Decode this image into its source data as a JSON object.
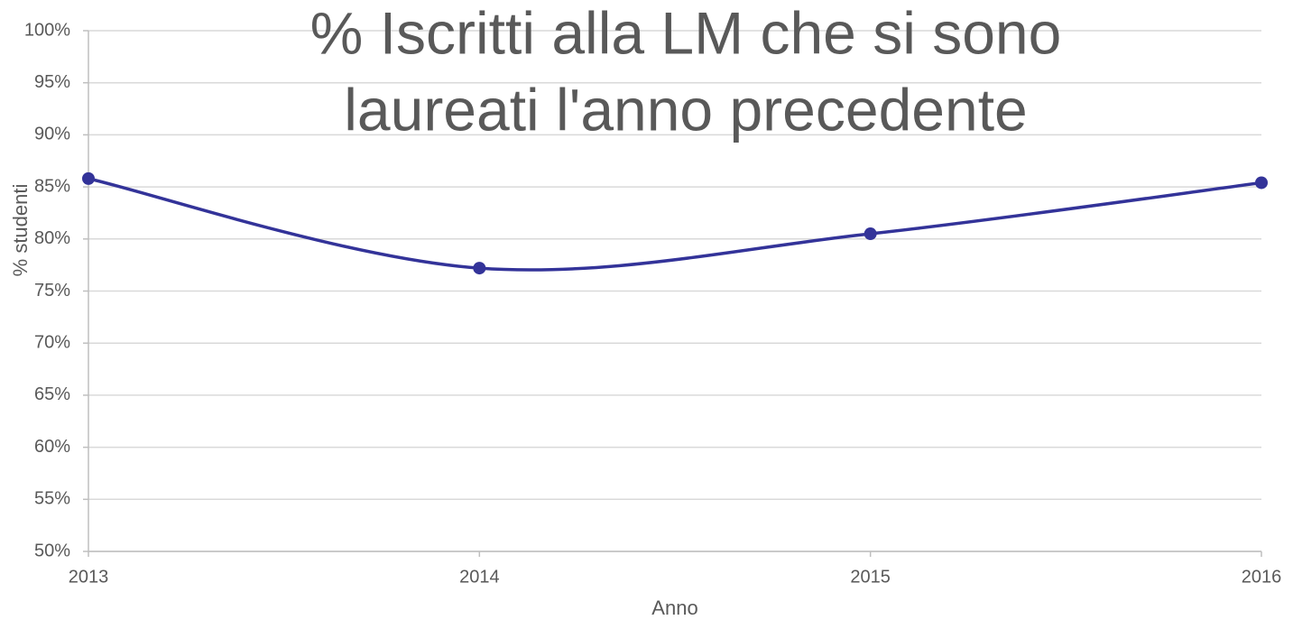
{
  "chart_data": {
    "type": "line",
    "title": [
      "% Iscritti alla LM che si sono",
      "laureati l'anno precedente"
    ],
    "x_label": "Anno",
    "y_label": "% studenti",
    "categories": [
      "2013",
      "2014",
      "2015",
      "2016"
    ],
    "series": [
      {
        "name": "% studenti",
        "color": "#333399",
        "values": [
          85.8,
          77.2,
          80.5,
          85.4
        ]
      }
    ],
    "ylim": [
      50,
      100
    ],
    "yticks": [
      {
        "value": 50,
        "label": "50%"
      },
      {
        "value": 55,
        "label": "55%"
      },
      {
        "value": 60,
        "label": "60%"
      },
      {
        "value": 65,
        "label": "65%"
      },
      {
        "value": 70,
        "label": "70%"
      },
      {
        "value": 75,
        "label": "75%"
      },
      {
        "value": 80,
        "label": "80%"
      },
      {
        "value": 85,
        "label": "85%"
      },
      {
        "value": 90,
        "label": "90%"
      },
      {
        "value": 95,
        "label": "95%"
      },
      {
        "value": 100,
        "label": "100%"
      }
    ],
    "grid": true,
    "smooth": true
  }
}
